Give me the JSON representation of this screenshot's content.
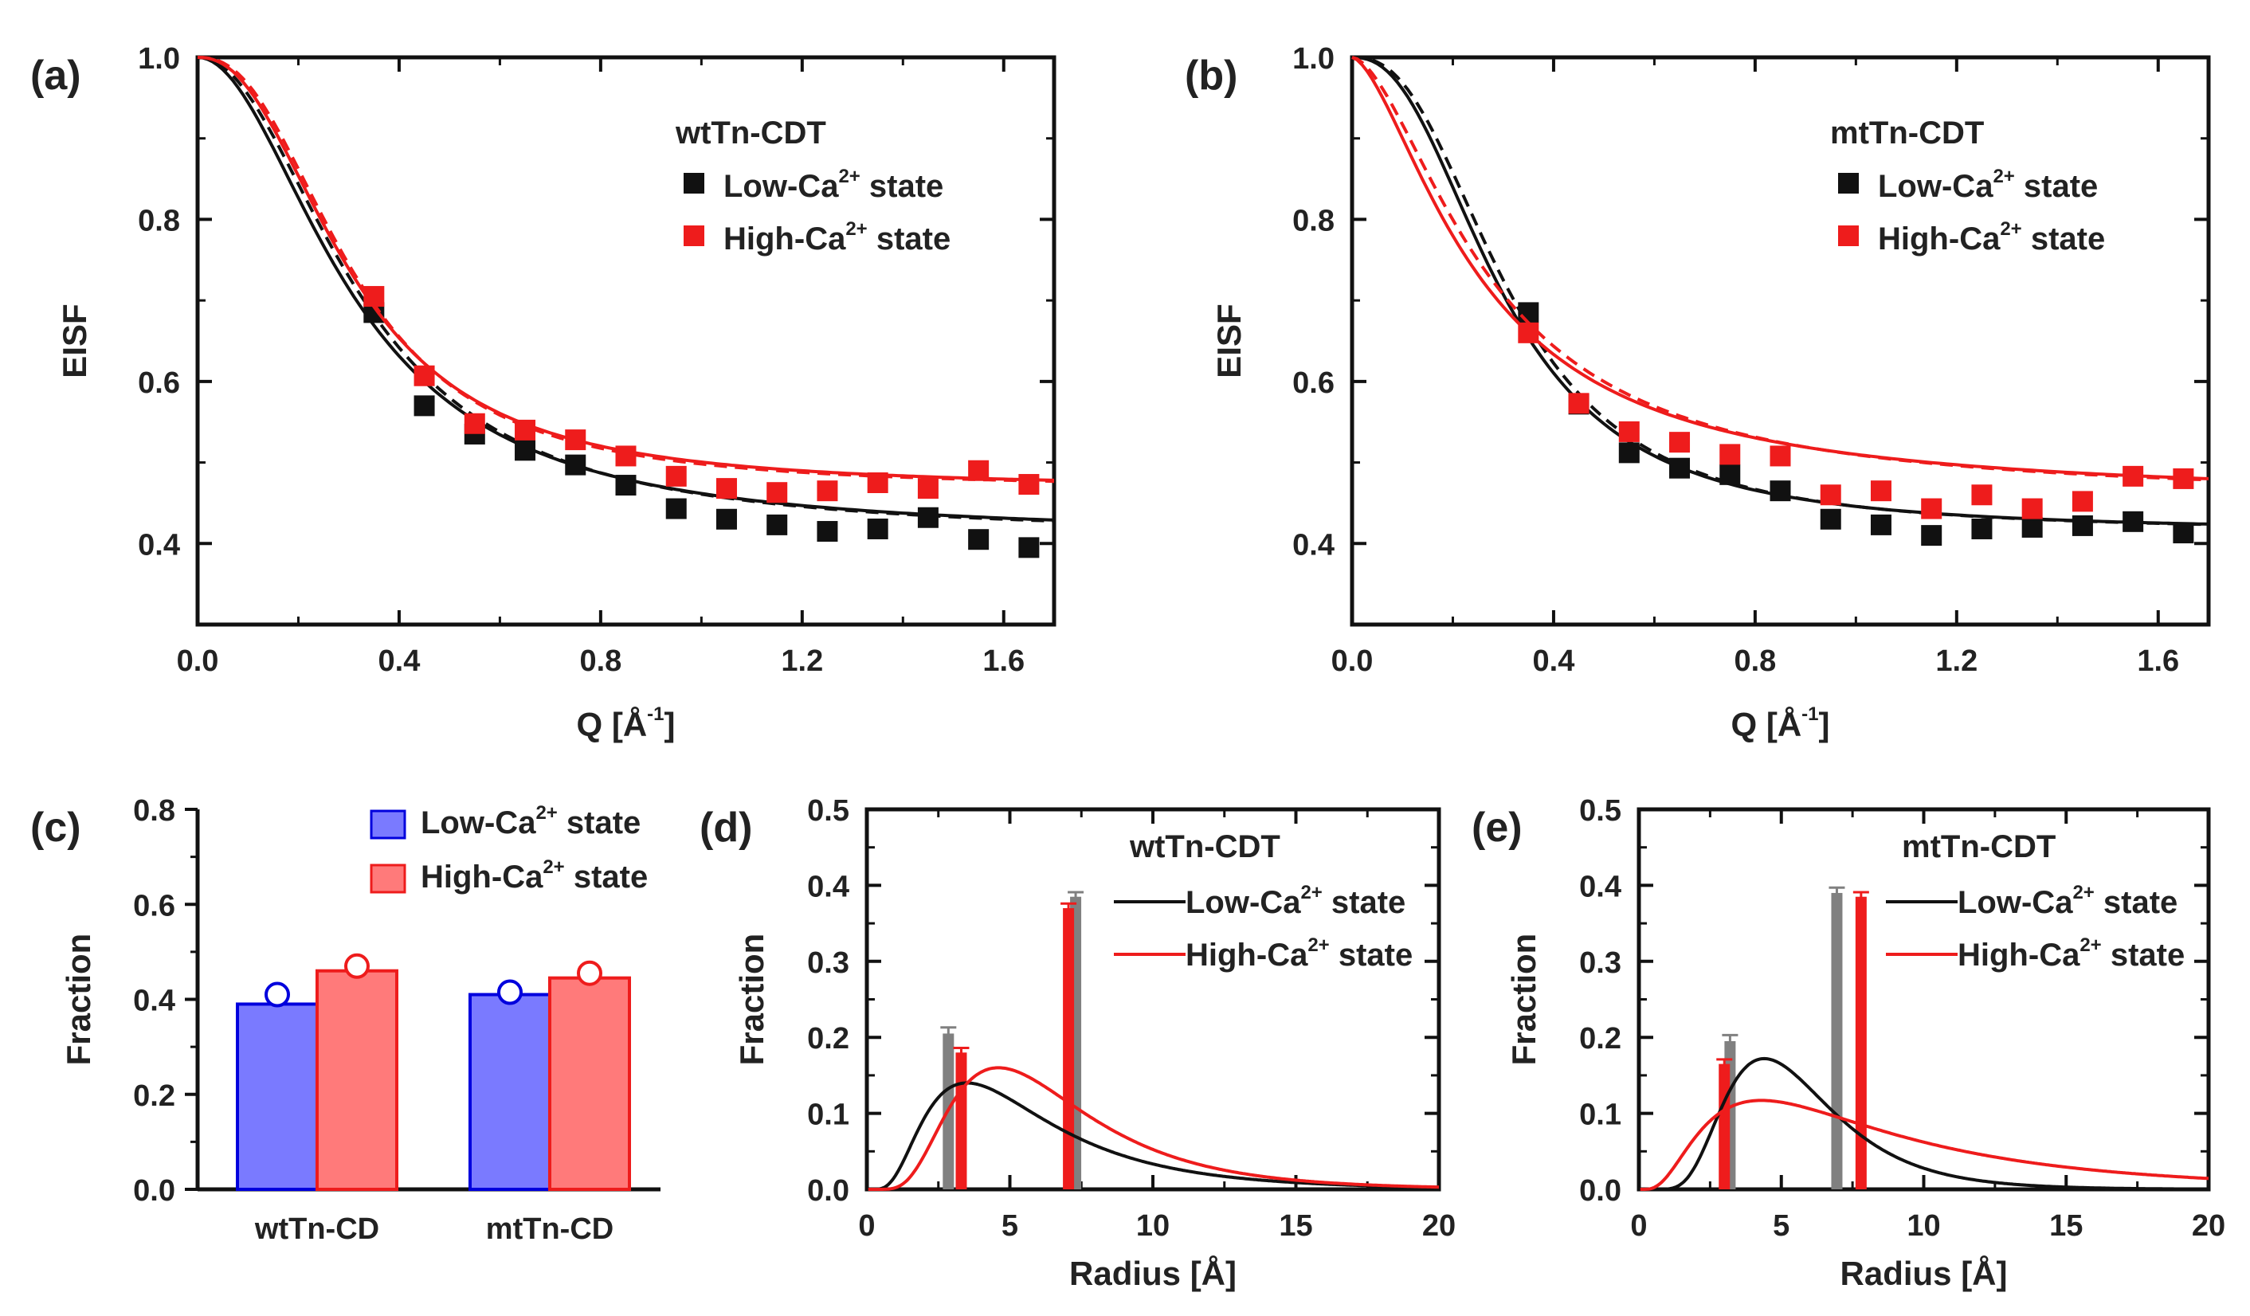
{
  "colors": {
    "black": "#111111",
    "red": "#ee1c1c",
    "gray": "#808080",
    "blue_fill": "#7a7aff",
    "blue_edge": "#0000dd",
    "red_fill": "#ff7a7a",
    "red_edge": "#ee1c1c"
  },
  "chart_data": [
    {
      "id": "a",
      "type": "scatter",
      "panel_label": "(a)",
      "title": "wtTn-CDT",
      "xlabel": "Q [Å-1]",
      "xlabel_main": "Q [Å",
      "xlabel_sup": "-1",
      "xlabel_end": "]",
      "ylabel": "EISF",
      "xlim": [
        0,
        1.7
      ],
      "ylim": [
        0.3,
        1.0
      ],
      "xticks": [
        0.0,
        0.4,
        0.8,
        1.2,
        1.6
      ],
      "xtick_labels": [
        "0.0",
        "0.4",
        "0.8",
        "1.2",
        "1.6"
      ],
      "yticks": [
        0.4,
        0.6,
        0.8,
        1.0
      ],
      "ytick_labels": [
        "0.4",
        "0.6",
        "0.8",
        "1.0"
      ],
      "legend": [
        {
          "label": "Low-Ca2+ state",
          "text": "Low-Ca",
          "sup": "2+",
          "tail": " state",
          "color": "#111111"
        },
        {
          "label": "High-Ca2+ state",
          "text": "High-Ca",
          "sup": "2+",
          "tail": " state",
          "color": "#ee1c1c"
        }
      ],
      "series": [
        {
          "name": "Low-Ca2+ state",
          "color": "#111111",
          "x": [
            0.35,
            0.45,
            0.55,
            0.65,
            0.75,
            0.85,
            0.95,
            1.05,
            1.15,
            1.25,
            1.35,
            1.45,
            1.55,
            1.65
          ],
          "y": [
            0.685,
            0.57,
            0.535,
            0.515,
            0.497,
            0.472,
            0.443,
            0.43,
            0.423,
            0.415,
            0.418,
            0.432,
            0.405,
            0.395
          ],
          "fit_solid": {
            "a": 0.41,
            "q0": 0.31,
            "n": 2.0
          },
          "fit_dash": {
            "a": 0.41,
            "q0": 0.325,
            "n": 2.1
          }
        },
        {
          "name": "High-Ca2+ state",
          "color": "#ee1c1c",
          "x": [
            0.35,
            0.45,
            0.55,
            0.65,
            0.75,
            0.85,
            0.95,
            1.05,
            1.15,
            1.25,
            1.35,
            1.45,
            1.55,
            1.65
          ],
          "y": [
            0.705,
            0.607,
            0.548,
            0.54,
            0.528,
            0.508,
            0.483,
            0.468,
            0.463,
            0.465,
            0.475,
            0.468,
            0.49,
            0.473
          ],
          "fit_solid": {
            "a": 0.468,
            "q0": 0.305,
            "n": 2.3
          },
          "fit_dash": {
            "a": 0.468,
            "q0": 0.31,
            "n": 2.4
          }
        }
      ]
    },
    {
      "id": "b",
      "type": "scatter",
      "panel_label": "(b)",
      "title": "mtTn-CDT",
      "xlabel": "Q [Å-1]",
      "xlabel_main": "Q [Å",
      "xlabel_sup": "-1",
      "xlabel_end": "]",
      "ylabel": "EISF",
      "xlim": [
        0,
        1.7
      ],
      "ylim": [
        0.3,
        1.0
      ],
      "xticks": [
        0.0,
        0.4,
        0.8,
        1.2,
        1.6
      ],
      "xtick_labels": [
        "0.0",
        "0.4",
        "0.8",
        "1.2",
        "1.6"
      ],
      "yticks": [
        0.4,
        0.6,
        0.8,
        1.0
      ],
      "ytick_labels": [
        "0.4",
        "0.6",
        "0.8",
        "1.0"
      ],
      "legend": [
        {
          "label": "Low-Ca2+ state",
          "text": "Low-Ca",
          "sup": "2+",
          "tail": " state",
          "color": "#111111"
        },
        {
          "label": "High-Ca2+ state",
          "text": "High-Ca",
          "sup": "2+",
          "tail": " state",
          "color": "#ee1c1c"
        }
      ],
      "series": [
        {
          "name": "Low-Ca2+ state",
          "color": "#111111",
          "x": [
            0.35,
            0.45,
            0.55,
            0.65,
            0.75,
            0.85,
            0.95,
            1.05,
            1.15,
            1.25,
            1.35,
            1.45,
            1.55,
            1.65
          ],
          "y": [
            0.685,
            0.572,
            0.512,
            0.493,
            0.485,
            0.465,
            0.43,
            0.423,
            0.41,
            0.418,
            0.42,
            0.422,
            0.427,
            0.413
          ],
          "fit_solid": {
            "a": 0.415,
            "q0": 0.3,
            "n": 2.4
          },
          "fit_dash": {
            "a": 0.415,
            "q0": 0.315,
            "n": 2.5
          }
        },
        {
          "name": "High-Ca2+ state",
          "color": "#ee1c1c",
          "x": [
            0.35,
            0.45,
            0.55,
            0.65,
            0.75,
            0.85,
            0.95,
            1.05,
            1.15,
            1.25,
            1.35,
            1.45,
            1.55,
            1.65
          ],
          "y": [
            0.66,
            0.573,
            0.538,
            0.525,
            0.51,
            0.508,
            0.46,
            0.465,
            0.443,
            0.46,
            0.443,
            0.452,
            0.483,
            0.48
          ],
          "fit_solid": {
            "a": 0.455,
            "q0": 0.255,
            "n": 1.6
          },
          "fit_dash": {
            "a": 0.455,
            "q0": 0.275,
            "n": 1.7
          }
        }
      ]
    },
    {
      "id": "c",
      "type": "bar",
      "panel_label": "(c)",
      "ylabel": "Fraction",
      "ylim": [
        0,
        0.8
      ],
      "yticks": [
        0.0,
        0.2,
        0.4,
        0.6,
        0.8
      ],
      "ytick_labels": [
        "0.0",
        "0.2",
        "0.4",
        "0.6",
        "0.8"
      ],
      "categories": [
        "wtTn-CD",
        "mtTn-CD"
      ],
      "legend": [
        {
          "label": "Low-Ca2+ state",
          "text": "Low-Ca",
          "sup": "2+",
          "tail": " state"
        },
        {
          "label": "High-Ca2+ state",
          "text": "High-Ca",
          "sup": "2+",
          "tail": " state"
        }
      ],
      "series": [
        {
          "name": "Low-Ca2+ state",
          "values": [
            0.39,
            0.41
          ],
          "markers": [
            0.41,
            0.415
          ]
        },
        {
          "name": "High-Ca2+ state",
          "values": [
            0.46,
            0.445
          ],
          "markers": [
            0.47,
            0.455
          ]
        }
      ]
    },
    {
      "id": "d",
      "type": "line",
      "panel_label": "(d)",
      "title": "wtTn-CDT",
      "xlabel": "Radius [Å]",
      "ylabel": "Fraction",
      "xlim": [
        0,
        20
      ],
      "ylim": [
        0,
        0.5
      ],
      "xticks": [
        0,
        5,
        10,
        15,
        20
      ],
      "xtick_labels": [
        "0",
        "5",
        "10",
        "15",
        "20"
      ],
      "yticks": [
        0.0,
        0.1,
        0.2,
        0.3,
        0.4,
        0.5
      ],
      "ytick_labels": [
        "0.0",
        "0.1",
        "0.2",
        "0.3",
        "0.4",
        "0.5"
      ],
      "legend": [
        {
          "label": "Low-Ca2+ state",
          "text": "Low-Ca",
          "sup": "2+",
          "tail": " state",
          "color": "#111111"
        },
        {
          "label": "High-Ca2+ state",
          "text": "High-Ca",
          "sup": "2+",
          "tail": " state",
          "color": "#ee1c1c"
        }
      ],
      "curves": [
        {
          "name": "Low-Ca2+ state",
          "color": "#111111",
          "peak_x": 3.5,
          "peak_y": 0.14,
          "sigma": 0.62
        },
        {
          "name": "High-Ca2+ state",
          "color": "#ee1c1c",
          "peak_x": 4.6,
          "peak_y": 0.16,
          "sigma": 0.52
        }
      ],
      "bars": [
        {
          "series": "Low-Ca2+ state",
          "color": "#808080",
          "x": 2.85,
          "value": 0.205,
          "err": 0.008
        },
        {
          "series": "Low-Ca2+ state",
          "color": "#808080",
          "x": 7.3,
          "value": 0.385,
          "err": 0.006
        },
        {
          "series": "High-Ca2+ state",
          "color": "#ee1c1c",
          "x": 3.3,
          "value": 0.18,
          "err": 0.006
        },
        {
          "series": "High-Ca2+ state",
          "color": "#ee1c1c",
          "x": 7.05,
          "value": 0.37,
          "err": 0.006
        }
      ]
    },
    {
      "id": "e",
      "type": "line",
      "panel_label": "(e)",
      "title": "mtTn-CDT",
      "xlabel": "Radius [Å]",
      "ylabel": "Fraction",
      "xlim": [
        0,
        20
      ],
      "ylim": [
        0,
        0.5
      ],
      "xticks": [
        0,
        5,
        10,
        15,
        20
      ],
      "xtick_labels": [
        "0",
        "5",
        "10",
        "15",
        "20"
      ],
      "yticks": [
        0.0,
        0.1,
        0.2,
        0.3,
        0.4,
        0.5
      ],
      "ytick_labels": [
        "0.0",
        "0.1",
        "0.2",
        "0.3",
        "0.4",
        "0.5"
      ],
      "legend": [
        {
          "label": "Low-Ca2+ state",
          "text": "Low-Ca",
          "sup": "2+",
          "tail": " state",
          "color": "#111111"
        },
        {
          "label": "High-Ca2+ state",
          "text": "High-Ca",
          "sup": "2+",
          "tail": " state",
          "color": "#ee1c1c"
        }
      ],
      "curves": [
        {
          "name": "Low-Ca2+ state",
          "color": "#111111",
          "peak_x": 4.4,
          "peak_y": 0.172,
          "sigma": 0.43
        },
        {
          "name": "High-Ca2+ state",
          "color": "#ee1c1c",
          "peak_x": 4.3,
          "peak_y": 0.117,
          "sigma": 0.75
        }
      ],
      "bars": [
        {
          "series": "Low-Ca2+ state",
          "color": "#808080",
          "x": 3.2,
          "value": 0.195,
          "err": 0.008
        },
        {
          "series": "Low-Ca2+ state",
          "color": "#808080",
          "x": 6.95,
          "value": 0.39,
          "err": 0.007
        },
        {
          "series": "High-Ca2+ state",
          "color": "#ee1c1c",
          "x": 3.0,
          "value": 0.165,
          "err": 0.006
        },
        {
          "series": "High-Ca2+ state",
          "color": "#ee1c1c",
          "x": 7.8,
          "value": 0.385,
          "err": 0.006
        }
      ]
    }
  ]
}
